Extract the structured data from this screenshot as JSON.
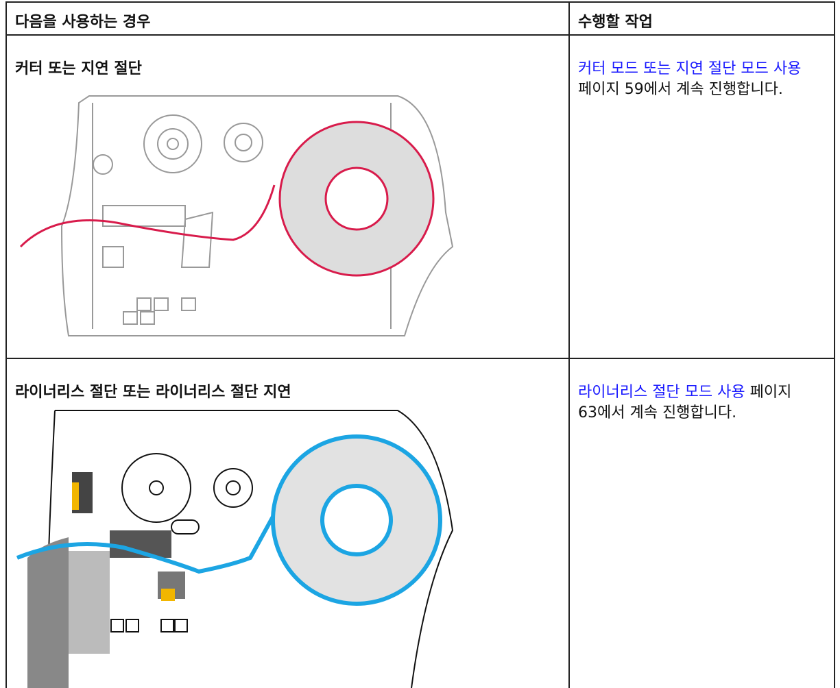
{
  "table": {
    "header": [
      "다음을 사용하는 경우",
      "수행할 작업"
    ],
    "rows": [
      {
        "label": "커터 또는 지연 절단",
        "link": "커터 모드 또는 지연 절단 모드 사용",
        "text": "페이지 59에서 계속 진행합니다."
      },
      {
        "label": "라이너리스 절단 또는 라이너리스 절단 지연",
        "link": "라이너리스 절단 모드 사용",
        "text": "페이지 63에서 계속 진행합니다."
      }
    ]
  }
}
